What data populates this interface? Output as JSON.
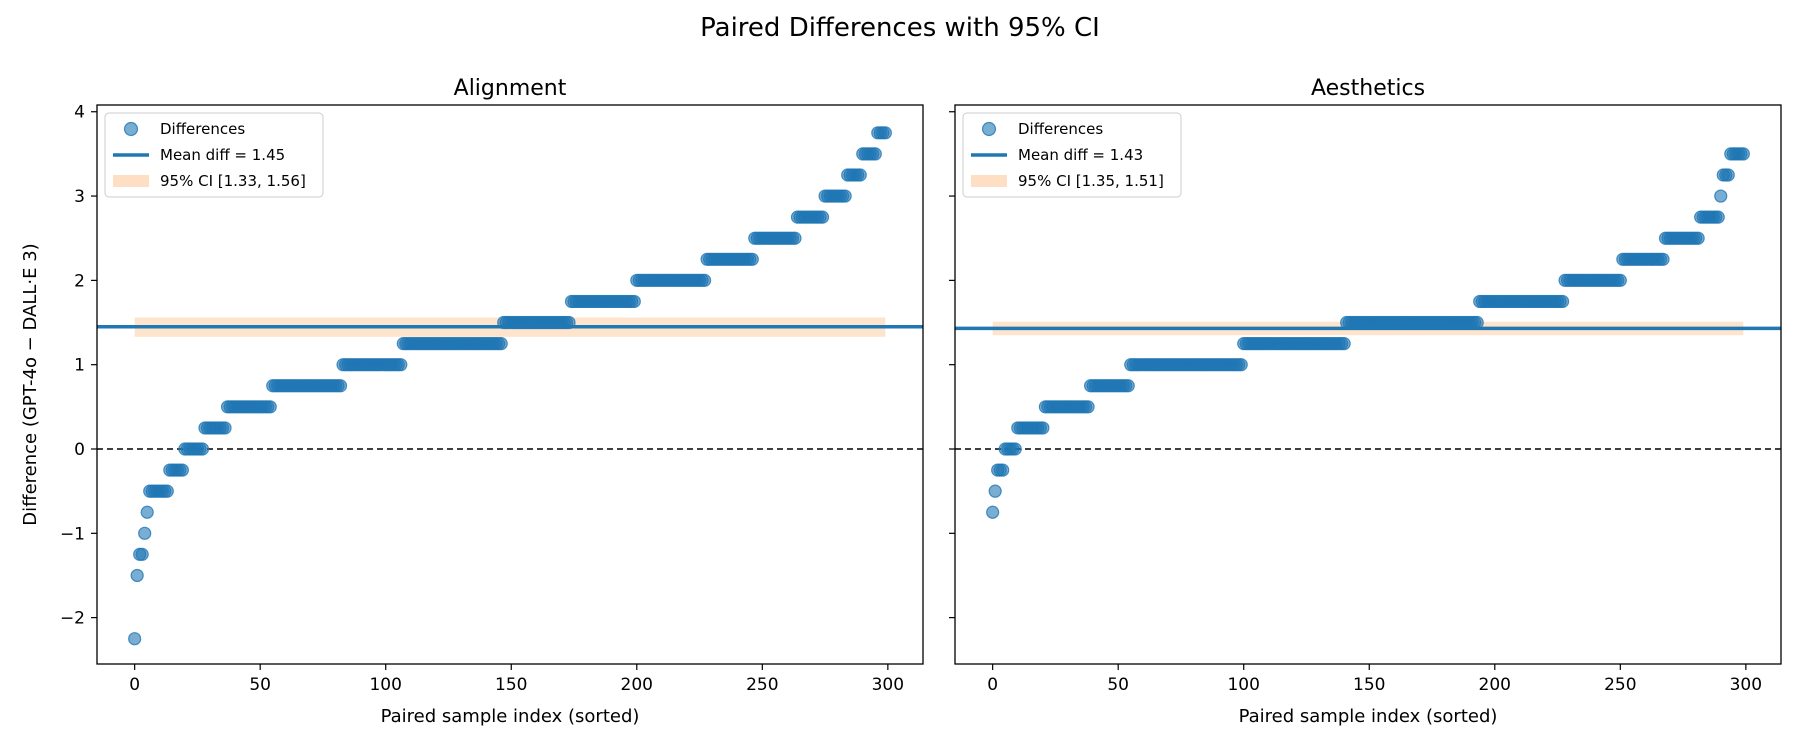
{
  "figure": {
    "suptitle": "Paired Differences with 95% CI",
    "colors": {
      "points": "#1f77b4",
      "mean_line": "#1f77b4",
      "ci_band": "#ffdfc4",
      "zero_line": "#000000"
    }
  },
  "chart_data": [
    {
      "type": "scatter",
      "title": "Alignment",
      "xlabel": "Paired sample index (sorted)",
      "ylabel": "Difference (GPT-4o − DALL·E 3)",
      "xlim": [
        -15,
        314
      ],
      "ylim": [
        -2.55,
        4.08
      ],
      "xticks": [
        0,
        50,
        100,
        150,
        200,
        250,
        300
      ],
      "yticks": [
        -2,
        -1,
        0,
        1,
        2,
        3,
        4
      ],
      "ytick_labels": [
        "−2",
        "−1",
        "0",
        "1",
        "2",
        "3",
        "4"
      ],
      "legend": {
        "position": "upper-left",
        "entries": [
          "Differences",
          "Mean diff = 1.45",
          "95% CI [1.33, 1.56]"
        ]
      },
      "mean_diff": 1.45,
      "ci": [
        1.33,
        1.56
      ],
      "reference_line_y": 0,
      "series": [
        {
          "name": "Differences",
          "runs": [
            {
              "from": 0,
              "to": 0,
              "value": -2.25
            },
            {
              "from": 1,
              "to": 1,
              "value": -1.5
            },
            {
              "from": 2,
              "to": 3,
              "value": -1.25
            },
            {
              "from": 4,
              "to": 4,
              "value": -1.0
            },
            {
              "from": 5,
              "to": 5,
              "value": -0.75
            },
            {
              "from": 6,
              "to": 13,
              "value": -0.5
            },
            {
              "from": 14,
              "to": 19,
              "value": -0.25
            },
            {
              "from": 20,
              "to": 27,
              "value": 0.0
            },
            {
              "from": 28,
              "to": 36,
              "value": 0.25
            },
            {
              "from": 37,
              "to": 54,
              "value": 0.5
            },
            {
              "from": 55,
              "to": 82,
              "value": 0.75
            },
            {
              "from": 83,
              "to": 106,
              "value": 1.0
            },
            {
              "from": 107,
              "to": 146,
              "value": 1.25
            },
            {
              "from": 147,
              "to": 173,
              "value": 1.5
            },
            {
              "from": 174,
              "to": 199,
              "value": 1.75
            },
            {
              "from": 200,
              "to": 227,
              "value": 2.0
            },
            {
              "from": 228,
              "to": 246,
              "value": 2.25
            },
            {
              "from": 247,
              "to": 263,
              "value": 2.5
            },
            {
              "from": 264,
              "to": 274,
              "value": 2.75
            },
            {
              "from": 275,
              "to": 283,
              "value": 3.0
            },
            {
              "from": 284,
              "to": 289,
              "value": 3.25
            },
            {
              "from": 290,
              "to": 295,
              "value": 3.5
            },
            {
              "from": 296,
              "to": 299,
              "value": 3.75
            }
          ]
        }
      ]
    },
    {
      "type": "scatter",
      "title": "Aesthetics",
      "xlabel": "Paired sample index (sorted)",
      "ylabel": "",
      "xlim": [
        -15,
        314
      ],
      "ylim": [
        -2.55,
        4.08
      ],
      "xticks": [
        0,
        50,
        100,
        150,
        200,
        250,
        300
      ],
      "yticks": [
        -2,
        -1,
        0,
        1,
        2,
        3,
        4
      ],
      "ytick_labels": [],
      "legend": {
        "position": "upper-left",
        "entries": [
          "Differences",
          "Mean diff = 1.43",
          "95% CI [1.35, 1.51]"
        ]
      },
      "mean_diff": 1.43,
      "ci": [
        1.35,
        1.51
      ],
      "reference_line_y": 0,
      "series": [
        {
          "name": "Differences",
          "runs": [
            {
              "from": 0,
              "to": 0,
              "value": -0.75
            },
            {
              "from": 1,
              "to": 1,
              "value": -0.5
            },
            {
              "from": 2,
              "to": 4,
              "value": -0.25
            },
            {
              "from": 5,
              "to": 9,
              "value": 0.0
            },
            {
              "from": 10,
              "to": 20,
              "value": 0.25
            },
            {
              "from": 21,
              "to": 38,
              "value": 0.5
            },
            {
              "from": 39,
              "to": 54,
              "value": 0.75
            },
            {
              "from": 55,
              "to": 99,
              "value": 1.0
            },
            {
              "from": 100,
              "to": 140,
              "value": 1.25
            },
            {
              "from": 141,
              "to": 193,
              "value": 1.5
            },
            {
              "from": 194,
              "to": 227,
              "value": 1.75
            },
            {
              "from": 228,
              "to": 250,
              "value": 2.0
            },
            {
              "from": 251,
              "to": 267,
              "value": 2.25
            },
            {
              "from": 268,
              "to": 281,
              "value": 2.5
            },
            {
              "from": 282,
              "to": 289,
              "value": 2.75
            },
            {
              "from": 290,
              "to": 290,
              "value": 3.0
            },
            {
              "from": 291,
              "to": 293,
              "value": 3.25
            },
            {
              "from": 294,
              "to": 299,
              "value": 3.5
            }
          ]
        }
      ]
    }
  ]
}
